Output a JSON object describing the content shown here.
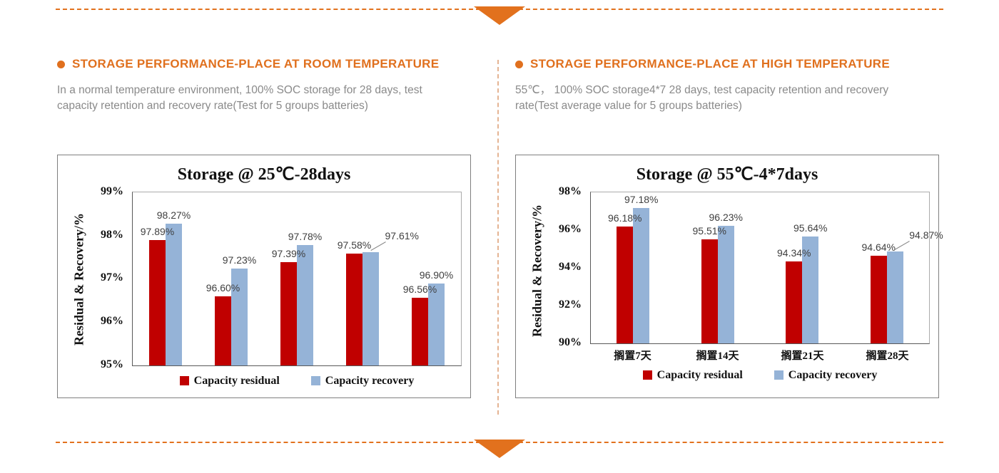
{
  "colors": {
    "accent_orange": "#E0701E",
    "bar_red": "#C00000",
    "bar_blue": "#95B3D7"
  },
  "left_section": {
    "header": "STORAGE PERFORMANCE-PLACE AT ROOM TEMPERATURE",
    "description": "In a normal temperature environment, 100% SOC storage for 28 days, test capacity retention and recovery rate(Test for 5 groups batteries)"
  },
  "right_section": {
    "header": "STORAGE PERFORMANCE-PLACE AT HIGH TEMPERATURE",
    "description": "55℃， 100% SOC storage4*7 28 days, test capacity retention and recovery rate(Test average value for 5 groups batteries)"
  },
  "chart_data": [
    {
      "type": "bar",
      "title": "Storage @ 25℃-28days",
      "ylabel": "Residual & Recovery/%",
      "ylim": [
        95,
        99
      ],
      "ytick_step": 1,
      "ytick_labels": [
        "99%",
        "98%",
        "97%",
        "96%",
        "95%"
      ],
      "categories": [
        "",
        "",
        "",
        "",
        ""
      ],
      "series": [
        {
          "name": "Capacity residual",
          "color": "#C00000",
          "values": [
            97.89,
            96.6,
            97.39,
            97.58,
            96.56
          ]
        },
        {
          "name": "Capacity recovery",
          "color": "#95B3D7",
          "values": [
            98.27,
            97.23,
            97.78,
            97.61,
            96.9
          ]
        }
      ],
      "data_label_format": "0.00%",
      "legend_position": "bottom",
      "grid": false
    },
    {
      "type": "bar",
      "title": "Storage @ 55℃-4*7days",
      "ylabel": "Residual & Recovery/%",
      "ylim": [
        90,
        98
      ],
      "ytick_step": 2,
      "ytick_labels": [
        "98%",
        "96%",
        "94%",
        "92%",
        "90%"
      ],
      "categories": [
        "搁置7天",
        "搁置14天",
        "搁置21天",
        "搁置28天"
      ],
      "series": [
        {
          "name": "Capacity residual",
          "color": "#C00000",
          "values": [
            96.18,
            95.51,
            94.34,
            94.64
          ]
        },
        {
          "name": "Capacity recovery",
          "color": "#95B3D7",
          "values": [
            97.18,
            96.23,
            95.64,
            94.87
          ]
        }
      ],
      "data_label_format": "0.00%",
      "legend_position": "bottom",
      "grid": false
    }
  ]
}
